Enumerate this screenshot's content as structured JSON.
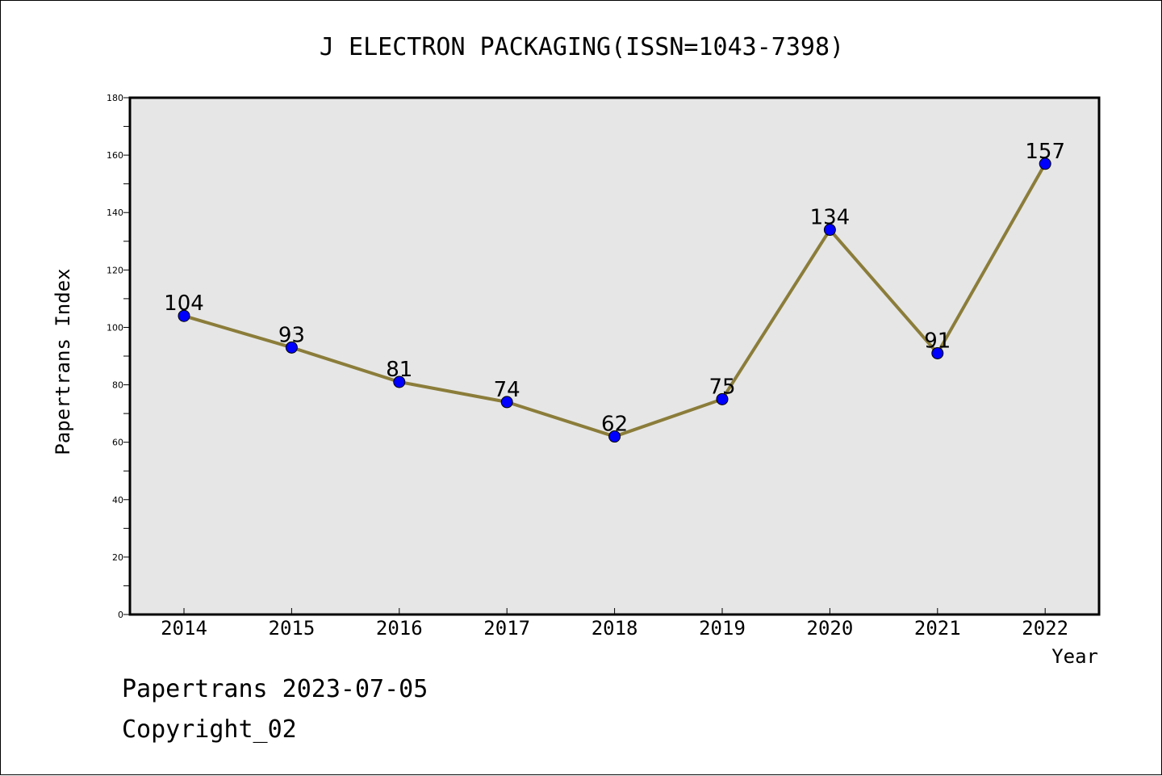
{
  "chart_data": {
    "type": "line",
    "title": "J ELECTRON PACKAGING(ISSN=1043-7398)",
    "xlabel": "Year",
    "ylabel": "Papertrans Index",
    "categories": [
      "2014",
      "2015",
      "2016",
      "2017",
      "2018",
      "2019",
      "2020",
      "2021",
      "2022"
    ],
    "values": [
      104,
      93,
      81,
      74,
      62,
      75,
      134,
      91,
      157
    ],
    "data_labels": [
      "104",
      "93",
      "81",
      "74",
      "62",
      "75",
      "134",
      "91",
      "157"
    ],
    "ylim": [
      0,
      180
    ],
    "yticks": [
      0,
      20,
      40,
      60,
      80,
      100,
      120,
      140,
      160,
      180
    ],
    "ytick_labels": [
      "0",
      "20",
      "40",
      "60",
      "80",
      "100",
      "120",
      "140",
      "160",
      "180"
    ],
    "grid": false,
    "colors": {
      "line": "#8b7d3a",
      "marker": "#0000ff",
      "plot_background": "#e6e6e6"
    }
  },
  "footer": {
    "line1": "Papertrans 2023-07-05",
    "line2": "Copyright_02"
  }
}
